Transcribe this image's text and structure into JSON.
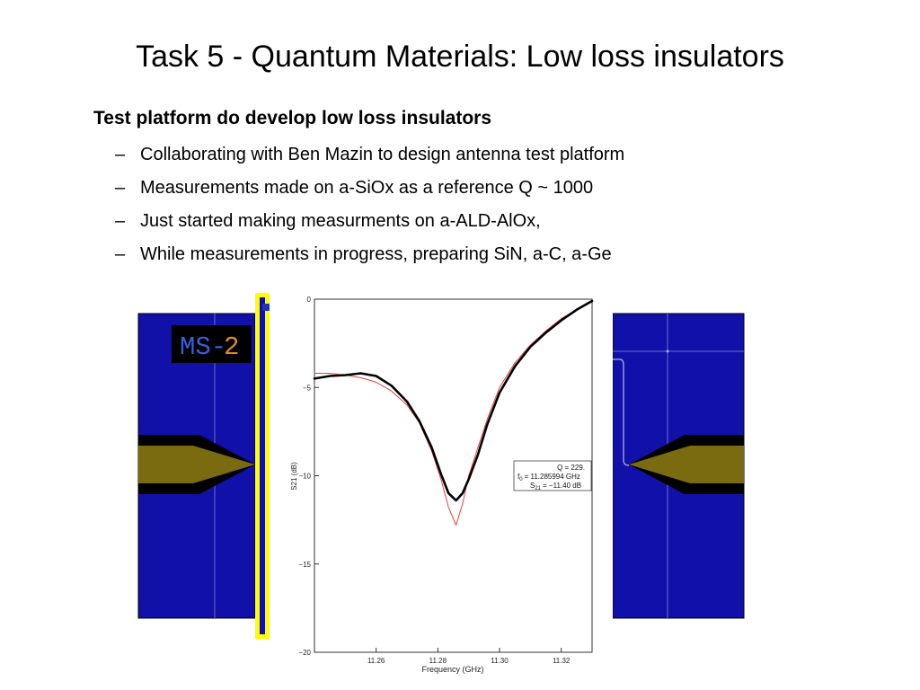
{
  "slide": {
    "title": "Task 5 - Quantum Materials:  Low loss insulators",
    "heading": "Test platform do develop low loss insulators",
    "bullets": [
      {
        "dash": "–",
        "text": "Collaborating with Ben Mazin to design antenna test platform"
      },
      {
        "dash": "–",
        "text": "Measurements made on a-SiOx as a reference Q ~ 1000"
      },
      {
        "dash": "–",
        "text": "Just started making measurments on a-ALD-AlOx,"
      },
      {
        "dash": "–",
        "text": "While measurements in progress, preparing SiN, a-C, a-Ge"
      }
    ]
  },
  "device_image": {
    "label_left": "MS-",
    "label_right": "2",
    "colors": {
      "substrate": "#1111aa",
      "feed": "#7a6a10",
      "gap": "#000000",
      "frame": "#ffff00",
      "label_text": "#3a5fe0",
      "label_accent": "#e08a20"
    }
  },
  "chart_data": {
    "type": "line",
    "xlabel": "Frequency (GHz)",
    "ylabel": "S21 (dB)",
    "xlim": [
      11.24,
      11.33
    ],
    "ylim": [
      -20,
      0
    ],
    "x_ticks": [
      "11.26",
      "11.28",
      "11.30",
      "11.32"
    ],
    "y_ticks": [
      "0",
      "−5",
      "−10",
      "−15",
      "−20"
    ],
    "series": [
      {
        "role": "measured",
        "color": "#000000",
        "x": [
          11.24,
          11.245,
          11.25,
          11.255,
          11.26,
          11.265,
          11.27,
          11.274,
          11.278,
          11.281,
          11.2835,
          11.2859,
          11.288,
          11.29,
          11.293,
          11.296,
          11.3,
          11.305,
          11.31,
          11.315,
          11.32,
          11.325,
          11.33
        ],
        "y": [
          -4.5,
          -4.35,
          -4.3,
          -4.2,
          -4.35,
          -4.9,
          -5.8,
          -6.9,
          -8.4,
          -9.9,
          -11.0,
          -11.4,
          -11.0,
          -10.2,
          -8.8,
          -7.1,
          -5.3,
          -3.8,
          -2.7,
          -1.9,
          -1.2,
          -0.6,
          -0.1
        ]
      },
      {
        "role": "fit",
        "color": "#e04040",
        "x": [
          11.24,
          11.245,
          11.25,
          11.255,
          11.26,
          11.265,
          11.27,
          11.274,
          11.278,
          11.281,
          11.2835,
          11.2859,
          11.288,
          11.29,
          11.293,
          11.296,
          11.3,
          11.305,
          11.31,
          11.315,
          11.32,
          11.325,
          11.33
        ],
        "y": [
          -4.2,
          -4.2,
          -4.3,
          -4.45,
          -4.7,
          -5.2,
          -6.0,
          -7.0,
          -8.6,
          -10.2,
          -11.8,
          -12.8,
          -11.6,
          -10.0,
          -8.4,
          -6.8,
          -5.0,
          -3.6,
          -2.6,
          -1.8,
          -1.1,
          -0.6,
          -0.1
        ]
      }
    ],
    "annotation": {
      "line1": "Q = 229.",
      "line2_sym": "f",
      "line2_sub": "0",
      "line2_val": "= 11.285994 GHz",
      "line3_sym": "S",
      "line3_sub": "21",
      "line3_val": "= −11.40 dB"
    }
  }
}
